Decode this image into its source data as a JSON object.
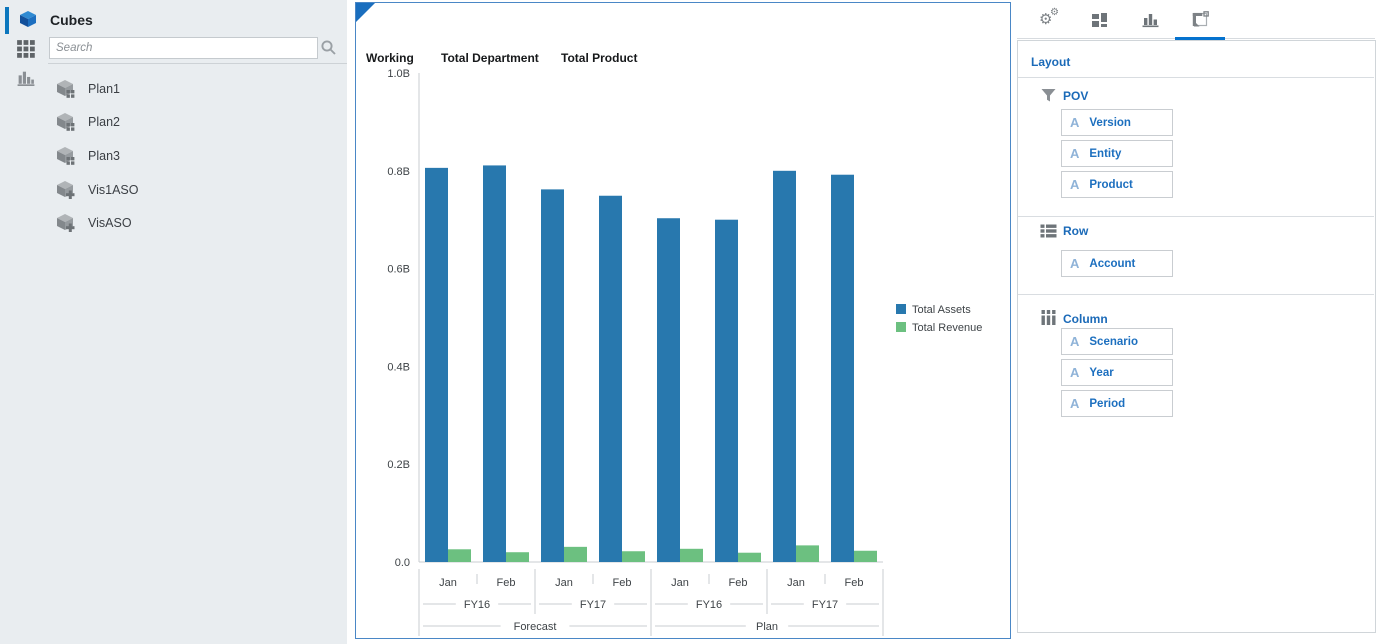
{
  "colors": {
    "accent_blue": "#0b76bd",
    "link_blue": "#1c6fbf",
    "panel_border_blue": "#4a87c6",
    "tab_underline_blue": "#0572ce",
    "bar_blue": "#2878ae",
    "bar_green": "#6cc080",
    "sidebar_bg": "#e9edf0"
  },
  "sidebar": {
    "title": "Cubes",
    "search": {
      "placeholder": "Search",
      "value": "",
      "icon": "search-icon"
    },
    "rail_icons": [
      "cube-icon",
      "grid-icon",
      "bar-chart-icon"
    ],
    "items": [
      {
        "label": "Plan1",
        "icon": "cube-grid-icon"
      },
      {
        "label": "Plan2",
        "icon": "cube-grid-icon"
      },
      {
        "label": "Plan3",
        "icon": "cube-grid-icon"
      },
      {
        "label": "Vis1ASO",
        "icon": "cube-plus-icon"
      },
      {
        "label": "VisASO",
        "icon": "cube-plus-icon"
      }
    ]
  },
  "chart_panel": {
    "pov_headers": [
      "Working",
      "Total Department",
      "Total Product"
    ]
  },
  "chart_data": {
    "type": "bar",
    "title": "",
    "xlabel": "",
    "ylabel": "",
    "unit": "B",
    "ylim": [
      0,
      1.0
    ],
    "y_ticks": [
      "0.0",
      "0.2B",
      "0.4B",
      "0.6B",
      "0.8B",
      "1.0B"
    ],
    "grid": false,
    "legend_position": "right",
    "x_levels": {
      "periods": [
        "Jan",
        "Feb",
        "Jan",
        "Feb",
        "Jan",
        "Feb",
        "Jan",
        "Feb"
      ],
      "years": [
        {
          "label": "FY16",
          "span": 2
        },
        {
          "label": "FY17",
          "span": 2
        },
        {
          "label": "FY16",
          "span": 2
        },
        {
          "label": "FY17",
          "span": 2
        }
      ],
      "scenarios": [
        {
          "label": "Forecast",
          "span": 4
        },
        {
          "label": "Plan",
          "span": 4
        }
      ]
    },
    "series": [
      {
        "name": "Total Assets",
        "color": "#2878ae",
        "values": [
          0.806,
          0.811,
          0.762,
          0.749,
          0.703,
          0.7,
          0.8,
          0.792
        ]
      },
      {
        "name": "Total Revenue",
        "color": "#6cc080",
        "values": [
          0.026,
          0.02,
          0.031,
          0.022,
          0.027,
          0.019,
          0.034,
          0.023
        ]
      }
    ]
  },
  "layout_panel": {
    "tabs": [
      {
        "icon": "gears-icon",
        "selected": false
      },
      {
        "icon": "tiles-icon",
        "selected": false
      },
      {
        "icon": "bar-chart-icon",
        "selected": false
      },
      {
        "icon": "canvas-layout-icon",
        "selected": true
      }
    ],
    "title": "Layout",
    "member_type_glyph": "A",
    "sections": [
      {
        "icon": "funnel-icon",
        "label": "POV",
        "members": [
          {
            "label": "Version"
          },
          {
            "label": "Entity"
          },
          {
            "label": "Product"
          }
        ]
      },
      {
        "icon": "rows-icon",
        "label": "Row",
        "members": [
          {
            "label": "Account"
          }
        ]
      },
      {
        "icon": "columns-icon",
        "label": "Column",
        "members": [
          {
            "label": "Scenario"
          },
          {
            "label": "Year"
          },
          {
            "label": "Period"
          }
        ]
      }
    ]
  }
}
